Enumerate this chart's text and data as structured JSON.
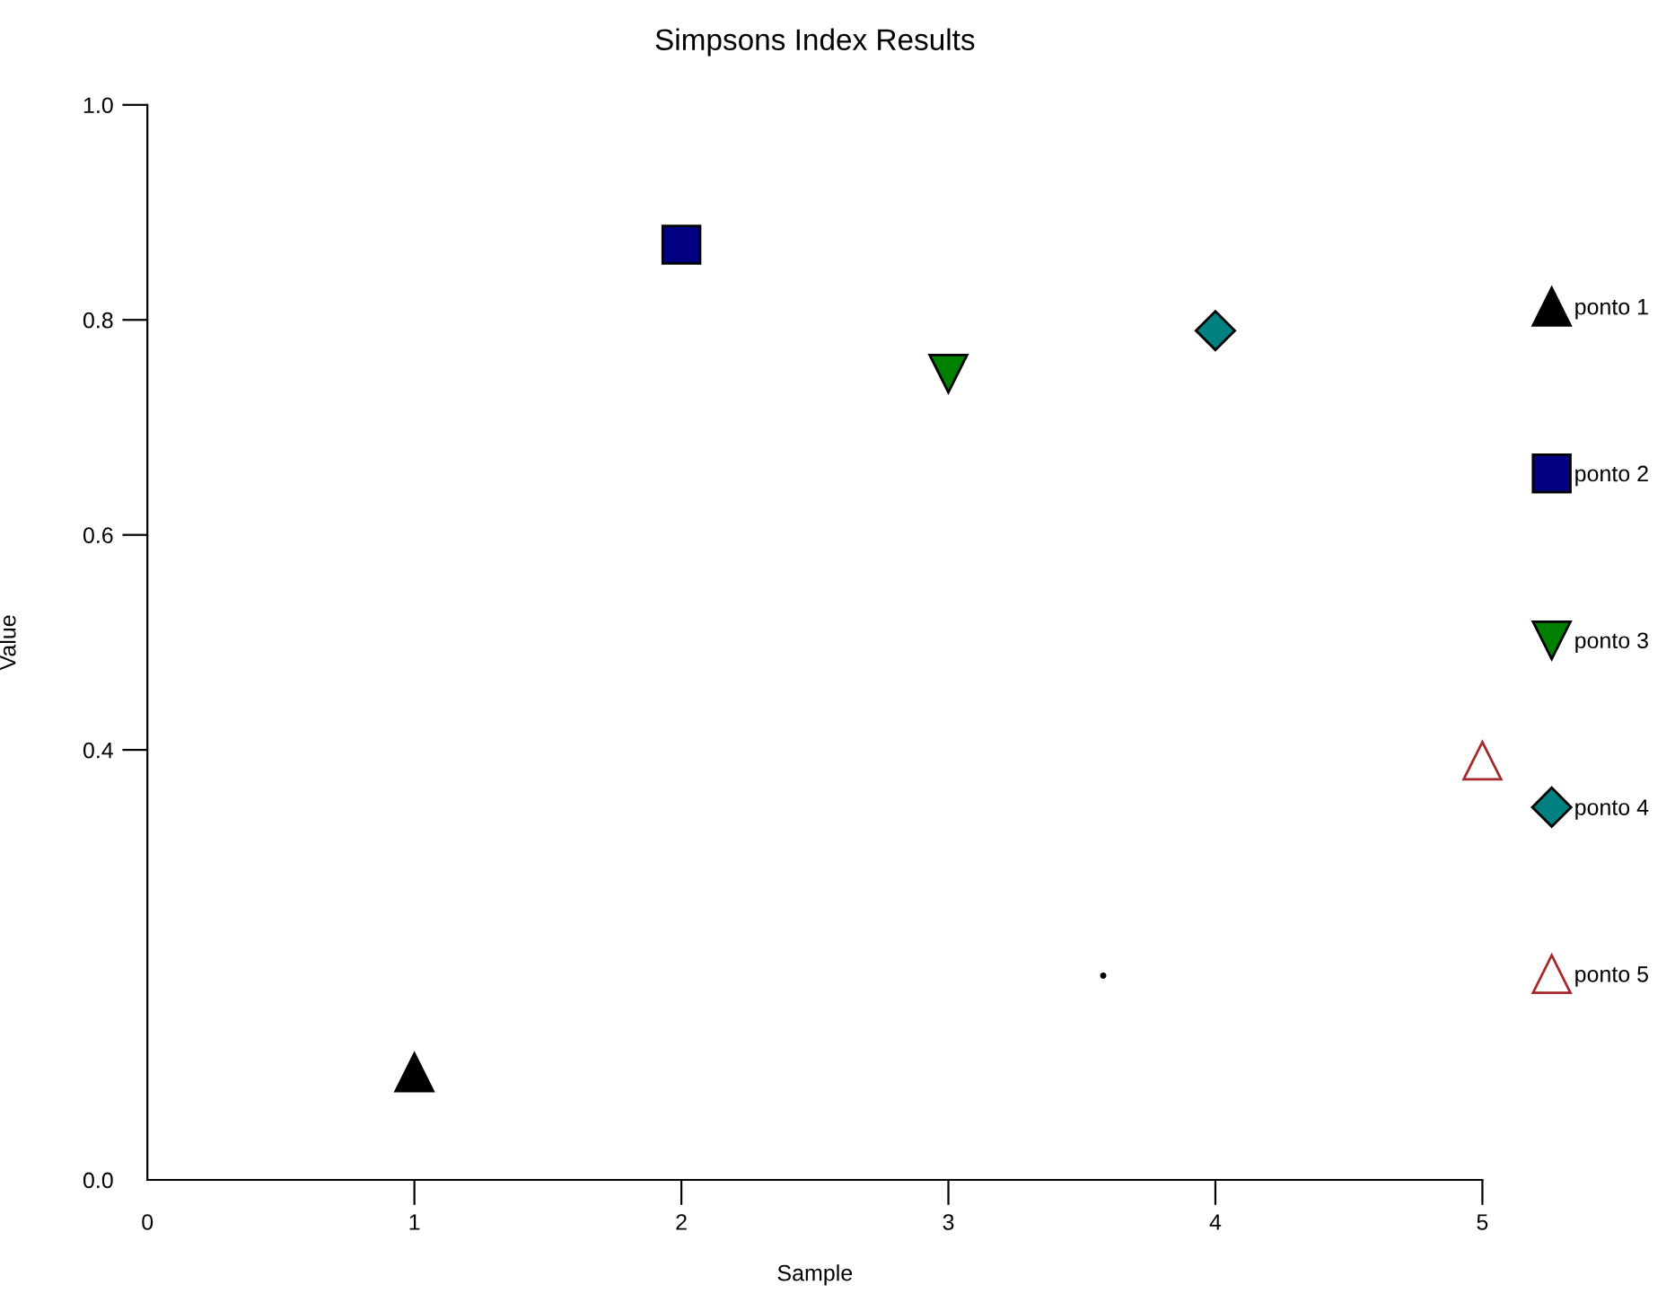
{
  "chart_data": {
    "type": "scatter",
    "title": "Simpsons Index Results",
    "xlabel": "Sample",
    "ylabel": "Value",
    "xlim": [
      0,
      5
    ],
    "xticks": [
      0,
      1,
      2,
      3,
      4,
      5
    ],
    "ylim": [
      0,
      1
    ],
    "yticks": [
      {
        "value": 0,
        "label": "0.0"
      },
      0.4,
      0.6,
      0.8,
      {
        "value": 1,
        "label": "1.0"
      }
    ],
    "grid": false,
    "legend": "right",
    "series": [
      {
        "name": "ponto 1",
        "color": "#000000",
        "marker": "triangle",
        "x": [
          1
        ],
        "values": [
          0.1
        ]
      },
      {
        "name": "ponto 2",
        "color": "#000080",
        "marker": "square",
        "x": [
          2
        ],
        "values": [
          0.87
        ]
      },
      {
        "name": "ponto 3",
        "color": "#008000",
        "marker": "triangle_down",
        "x": [
          3
        ],
        "values": [
          0.75
        ]
      },
      {
        "name": "ponto 4",
        "color": "#008080",
        "marker": "diamond",
        "x": [
          4
        ],
        "values": [
          0.79
        ]
      },
      {
        "name": "ponto 5",
        "color": "#a52a2a",
        "marker": "triangle_open",
        "x": [
          5
        ],
        "values": [
          0.39
        ]
      },
      {
        "color": "#000000",
        "marker": "point",
        "x": [
          3.58
        ],
        "values": [
          0.19
        ]
      }
    ]
  }
}
